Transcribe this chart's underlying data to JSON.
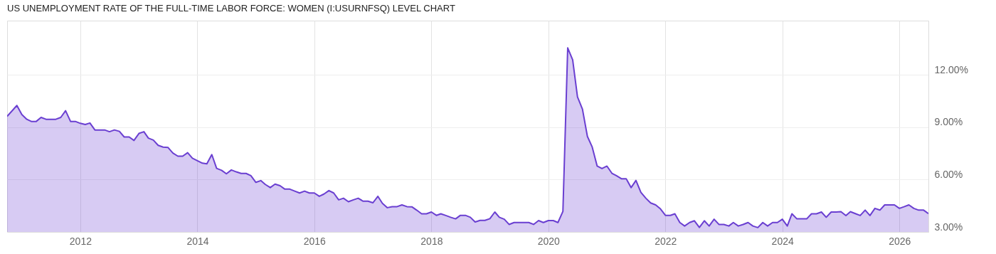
{
  "chart_data": {
    "type": "area",
    "title": "US UNEMPLOYMENT RATE OF THE FULL-TIME LABOR FORCE: WOMEN (I:USURNFSQ) LEVEL CHART",
    "x": [
      "2010-10",
      "2010-12",
      "2011-01",
      "2011-02",
      "2011-03",
      "2011-04",
      "2011-05",
      "2011-06",
      "2011-07",
      "2011-08",
      "2011-09",
      "2011-10",
      "2011-11",
      "2011-12",
      "2012-01",
      "2012-02",
      "2012-03",
      "2012-04",
      "2012-05",
      "2012-06",
      "2012-07",
      "2012-08",
      "2012-09",
      "2012-10",
      "2012-11",
      "2012-12",
      "2013-01",
      "2013-02",
      "2013-03",
      "2013-04",
      "2013-05",
      "2013-06",
      "2013-07",
      "2013-08",
      "2013-09",
      "2013-10",
      "2013-11",
      "2013-12",
      "2014-01",
      "2014-02",
      "2014-03",
      "2014-04",
      "2014-05",
      "2014-06",
      "2014-07",
      "2014-08",
      "2014-09",
      "2014-10",
      "2014-11",
      "2014-12",
      "2015-01",
      "2015-02",
      "2015-03",
      "2015-04",
      "2015-05",
      "2015-06",
      "2015-07",
      "2015-08",
      "2015-09",
      "2015-10",
      "2015-11",
      "2015-12",
      "2016-01",
      "2016-02",
      "2016-03",
      "2016-04",
      "2016-05",
      "2016-06",
      "2016-07",
      "2016-08",
      "2016-09",
      "2016-10",
      "2016-11",
      "2016-12",
      "2017-01",
      "2017-02",
      "2017-03",
      "2017-04",
      "2017-05",
      "2017-06",
      "2017-07",
      "2017-08",
      "2017-09",
      "2017-10",
      "2017-11",
      "2017-12",
      "2018-01",
      "2018-02",
      "2018-03",
      "2018-04",
      "2018-05",
      "2018-06",
      "2018-07",
      "2018-08",
      "2018-09",
      "2018-10",
      "2018-11",
      "2018-12",
      "2019-01",
      "2019-02",
      "2019-03",
      "2019-04",
      "2019-05",
      "2019-06",
      "2019-07",
      "2019-08",
      "2019-09",
      "2019-10",
      "2019-11",
      "2019-12",
      "2020-01",
      "2020-02",
      "2020-03",
      "2020-04",
      "2020-05",
      "2020-06",
      "2020-07",
      "2020-08",
      "2020-09",
      "2020-10",
      "2020-11",
      "2020-12",
      "2021-01",
      "2021-02",
      "2021-03",
      "2021-04",
      "2021-05",
      "2021-06",
      "2021-07",
      "2021-08",
      "2021-09",
      "2021-10",
      "2021-11",
      "2021-12",
      "2022-01",
      "2022-02",
      "2022-03",
      "2022-04",
      "2022-05",
      "2022-06",
      "2022-07",
      "2022-08",
      "2022-09",
      "2022-10",
      "2022-11",
      "2022-12",
      "2023-01",
      "2023-02",
      "2023-03",
      "2023-04",
      "2023-05",
      "2023-06",
      "2023-07",
      "2023-08",
      "2023-09",
      "2023-10",
      "2023-11",
      "2023-12",
      "2024-01",
      "2024-02",
      "2024-03",
      "2024-04",
      "2024-05",
      "2024-06",
      "2024-07",
      "2024-08",
      "2024-09",
      "2024-10",
      "2024-11",
      "2024-12",
      "2025-01",
      "2025-02",
      "2025-03",
      "2025-04",
      "2025-05",
      "2025-06",
      "2025-07",
      "2025-08",
      "2025-09",
      "2025-10",
      "2025-11",
      "2025-12",
      "2026-01",
      "2026-02",
      "2026-03",
      "2026-04",
      "2026-05",
      "2026-06",
      "2026-07"
    ],
    "series": [
      {
        "color": "#6a3fd1",
        "values": [
          9.62,
          10.24,
          9.72,
          9.45,
          9.33,
          9.33,
          9.56,
          9.45,
          9.45,
          9.45,
          9.56,
          9.94,
          9.33,
          9.33,
          9.22,
          9.15,
          9.24,
          8.84,
          8.84,
          8.84,
          8.74,
          8.84,
          8.76,
          8.44,
          8.44,
          8.24,
          8.64,
          8.74,
          8.37,
          8.26,
          7.96,
          7.86,
          7.84,
          7.52,
          7.34,
          7.34,
          7.54,
          7.22,
          7.08,
          6.94,
          6.9,
          7.43,
          6.64,
          6.53,
          6.33,
          6.55,
          6.44,
          6.35,
          6.35,
          6.22,
          5.84,
          5.94,
          5.72,
          5.54,
          5.74,
          5.65,
          5.45,
          5.45,
          5.34,
          5.23,
          5.34,
          5.23,
          5.23,
          5.04,
          5.17,
          5.37,
          5.23,
          4.84,
          4.93,
          4.73,
          4.84,
          4.93,
          4.76,
          4.76,
          4.67,
          5.04,
          4.64,
          4.39,
          4.45,
          4.45,
          4.55,
          4.45,
          4.44,
          4.25,
          4.04,
          4.04,
          4.14,
          3.95,
          4.04,
          3.94,
          3.84,
          3.75,
          3.95,
          3.95,
          3.84,
          3.57,
          3.66,
          3.66,
          3.76,
          4.14,
          3.84,
          3.73,
          3.43,
          3.54,
          3.54,
          3.54,
          3.54,
          3.43,
          3.65,
          3.54,
          3.65,
          3.65,
          3.54,
          4.18,
          13.54,
          12.85,
          10.74,
          10.03,
          8.47,
          7.86,
          6.77,
          6.63,
          6.77,
          6.36,
          6.22,
          6.05,
          6.05,
          5.54,
          5.95,
          5.27,
          4.93,
          4.66,
          4.55,
          4.32,
          3.95,
          3.95,
          4.04,
          3.54,
          3.34,
          3.54,
          3.64,
          3.26,
          3.64,
          3.34,
          3.73,
          3.43,
          3.43,
          3.34,
          3.54,
          3.34,
          3.43,
          3.54,
          3.34,
          3.25,
          3.54,
          3.34,
          3.54,
          3.54,
          3.73,
          3.34,
          4.04,
          3.75,
          3.75,
          3.75,
          4.04,
          4.04,
          4.14,
          3.84,
          4.14,
          4.14,
          4.16,
          3.94,
          4.16,
          4.05,
          3.94,
          4.25,
          3.94,
          4.35,
          4.25,
          4.55,
          4.55,
          4.55,
          4.35,
          4.45,
          4.55,
          4.35,
          4.25,
          4.25,
          4.05
        ]
      }
    ],
    "xlim": [
      "2010-10",
      "2026-07"
    ],
    "xticks": [
      "2012",
      "2014",
      "2016",
      "2018",
      "2020",
      "2022",
      "2024",
      "2026"
    ],
    "ylim": [
      3,
      15.1
    ],
    "yticks": [
      {
        "value": 3,
        "label": "3.00%"
      },
      {
        "value": 6,
        "label": "6.00%"
      },
      {
        "value": 9,
        "label": "9.00%"
      },
      {
        "value": 12,
        "label": "12.00%"
      }
    ],
    "grid": true
  }
}
